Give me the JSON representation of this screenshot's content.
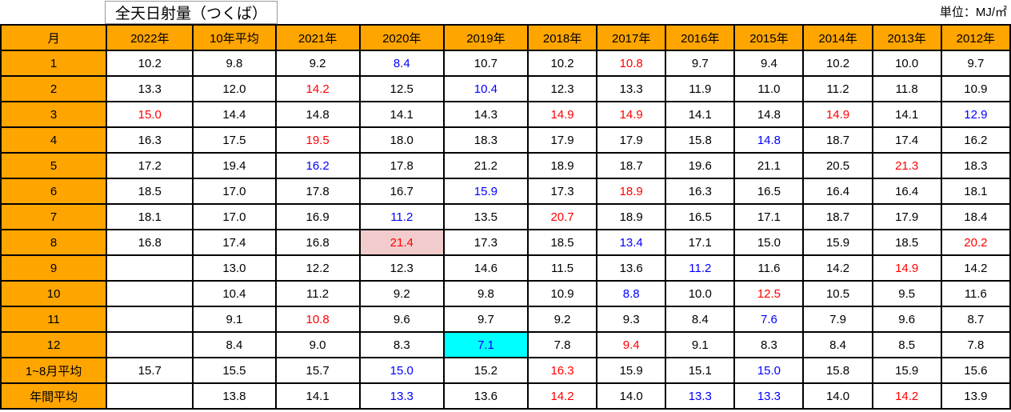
{
  "title": "全天日射量（つくば）",
  "unit_label": "単位：MJ/㎡",
  "colors": {
    "header_bg": "#FFA500",
    "red_text": "#FF0000",
    "blue_text": "#0000FF",
    "pink_bg": "#F2CCCC",
    "cyan_bg": "#00FFFF",
    "border": "#000000"
  },
  "table": {
    "columns": [
      "月",
      "2022年",
      "10年平均",
      "2021年",
      "2020年",
      "2019年",
      "2018年",
      "2017年",
      "2016年",
      "2015年",
      "2014年",
      "2013年",
      "2012年"
    ],
    "rows": [
      {
        "label": "1",
        "cells": [
          "10.2",
          "9.8",
          "9.2",
          {
            "v": "8.4",
            "c": "blue"
          },
          "10.7",
          "10.2",
          {
            "v": "10.8",
            "c": "red"
          },
          "9.7",
          "9.4",
          "10.2",
          "10.0",
          "9.7"
        ]
      },
      {
        "label": "2",
        "cells": [
          "13.3",
          "12.0",
          {
            "v": "14.2",
            "c": "red"
          },
          "12.5",
          {
            "v": "10.4",
            "c": "blue"
          },
          "12.3",
          "13.3",
          "11.9",
          "11.0",
          "11.2",
          "11.8",
          "10.9"
        ]
      },
      {
        "label": "3",
        "cells": [
          {
            "v": "15.0",
            "c": "red"
          },
          "14.4",
          "14.8",
          "14.1",
          "14.3",
          {
            "v": "14.9",
            "c": "red"
          },
          {
            "v": "14.9",
            "c": "red"
          },
          "14.1",
          "14.8",
          {
            "v": "14.9",
            "c": "red"
          },
          "14.1",
          {
            "v": "12.9",
            "c": "blue"
          }
        ]
      },
      {
        "label": "4",
        "cells": [
          "16.3",
          "17.5",
          {
            "v": "19.5",
            "c": "red"
          },
          "18.0",
          "18.3",
          "17.9",
          "17.9",
          "15.8",
          {
            "v": "14.8",
            "c": "blue"
          },
          "18.7",
          "17.4",
          "16.2"
        ]
      },
      {
        "label": "5",
        "cells": [
          "17.2",
          "19.4",
          {
            "v": "16.2",
            "c": "blue"
          },
          "17.8",
          "21.2",
          "18.9",
          "18.7",
          "19.6",
          "21.1",
          "20.5",
          {
            "v": "21.3",
            "c": "red"
          },
          "18.3"
        ]
      },
      {
        "label": "6",
        "cells": [
          "18.5",
          "17.0",
          "17.8",
          "16.7",
          {
            "v": "15.9",
            "c": "blue"
          },
          "17.3",
          {
            "v": "18.9",
            "c": "red"
          },
          "16.3",
          "16.5",
          "16.4",
          "16.4",
          "18.1"
        ]
      },
      {
        "label": "7",
        "cells": [
          "18.1",
          "17.0",
          "16.9",
          {
            "v": "11.2",
            "c": "blue"
          },
          "13.5",
          {
            "v": "20.7",
            "c": "red"
          },
          "18.9",
          "16.5",
          "17.1",
          "18.7",
          "17.9",
          "18.4"
        ]
      },
      {
        "label": "8",
        "cells": [
          "16.8",
          "17.4",
          "16.8",
          {
            "v": "21.4",
            "c": "red",
            "bg": "pink"
          },
          "17.3",
          "18.5",
          {
            "v": "13.4",
            "c": "blue"
          },
          "17.1",
          "15.0",
          "15.9",
          "18.5",
          {
            "v": "20.2",
            "c": "red"
          }
        ]
      },
      {
        "label": "9",
        "cells": [
          "",
          "13.0",
          "12.2",
          "12.3",
          "14.6",
          "11.5",
          "13.6",
          {
            "v": "11.2",
            "c": "blue"
          },
          "11.6",
          "14.2",
          {
            "v": "14.9",
            "c": "red"
          },
          "14.2"
        ]
      },
      {
        "label": "10",
        "cells": [
          "",
          "10.4",
          "11.2",
          "9.2",
          "9.8",
          "10.9",
          {
            "v": "8.8",
            "c": "blue"
          },
          "10.0",
          {
            "v": "12.5",
            "c": "red"
          },
          "10.5",
          "9.5",
          "11.6"
        ]
      },
      {
        "label": "11",
        "cells": [
          "",
          "9.1",
          {
            "v": "10.8",
            "c": "red"
          },
          "9.6",
          "9.7",
          "9.2",
          "9.3",
          "8.4",
          {
            "v": "7.6",
            "c": "blue"
          },
          "7.9",
          "9.6",
          "8.7"
        ]
      },
      {
        "label": "12",
        "cells": [
          "",
          "8.4",
          "9.0",
          "8.3",
          {
            "v": "7.1",
            "c": "blue",
            "bg": "cyan"
          },
          "7.8",
          {
            "v": "9.4",
            "c": "red"
          },
          "9.1",
          "8.3",
          "8.4",
          "8.5",
          "7.8"
        ]
      },
      {
        "label": "1~8月平均",
        "cells": [
          "15.7",
          "15.5",
          "15.7",
          {
            "v": "15.0",
            "c": "blue"
          },
          "15.2",
          {
            "v": "16.3",
            "c": "red"
          },
          "15.9",
          "15.1",
          {
            "v": "15.0",
            "c": "blue"
          },
          "15.8",
          "15.9",
          "15.6"
        ]
      },
      {
        "label": "年間平均",
        "cells": [
          "",
          "13.8",
          "14.1",
          {
            "v": "13.3",
            "c": "blue"
          },
          "13.6",
          {
            "v": "14.2",
            "c": "red"
          },
          "14.0",
          {
            "v": "13.3",
            "c": "blue"
          },
          {
            "v": "13.3",
            "c": "blue"
          },
          "14.0",
          {
            "v": "14.2",
            "c": "red"
          },
          "13.9"
        ]
      }
    ]
  }
}
